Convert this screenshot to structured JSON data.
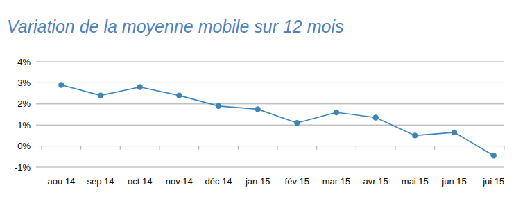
{
  "chart_data": {
    "type": "line",
    "title": "Variation de la moyenne mobile sur 12 mois",
    "categories": [
      "aou 14",
      "sep 14",
      "oct 14",
      "nov 14",
      "déc 14",
      "jan 15",
      "fév 15",
      "mar 15",
      "avr 15",
      "mai 15",
      "jun 15",
      "jui 15"
    ],
    "values": [
      2.9,
      2.4,
      2.8,
      2.4,
      1.9,
      1.75,
      1.1,
      1.6,
      1.35,
      0.5,
      0.65,
      -0.45
    ],
    "color": "#3d85b8",
    "marker": "circle",
    "line_style": "solid",
    "ylim": [
      -1,
      4
    ],
    "yticks": [
      {
        "value": -1,
        "label": "-1%"
      },
      {
        "value": 0,
        "label": "0%"
      },
      {
        "value": 1,
        "label": "1%"
      },
      {
        "value": 2,
        "label": "2%"
      },
      {
        "value": 3,
        "label": "3%"
      },
      {
        "value": 4,
        "label": "4%"
      }
    ],
    "grid": true
  }
}
